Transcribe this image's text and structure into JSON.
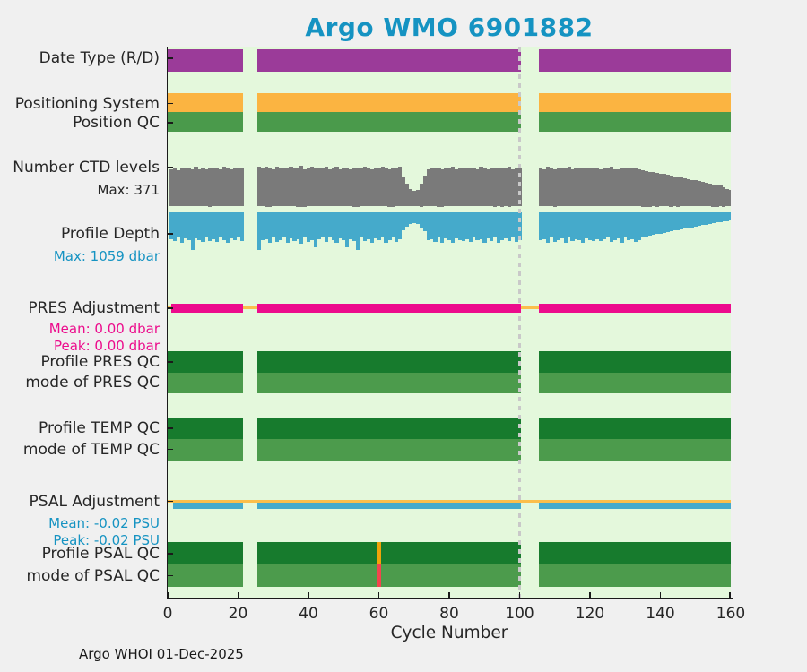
{
  "figure": {
    "title": "Argo WMO 6901882",
    "credit": "Argo WHOI 01-Dec-2025"
  },
  "x_axis": {
    "label": "Cycle Number",
    "ticks": [
      0,
      20,
      40,
      60,
      80,
      100,
      120,
      140,
      160
    ],
    "range": [
      0,
      160
    ]
  },
  "row_labels": [
    {
      "label": "Date Type (R/D)"
    },
    {
      "label": "Positioning System"
    },
    {
      "label": "Position QC"
    },
    {
      "label": "Number CTD levels",
      "subs": [
        {
          "text": "Max: 371",
          "color": "label_dark"
        }
      ]
    },
    {
      "label": "Profile Depth",
      "subs": [
        {
          "text": "Max: 1059 dbar",
          "color": "teal_text"
        }
      ]
    },
    {
      "label": "PRES Adjustment",
      "subs": [
        {
          "text": "Mean: 0.00 dbar",
          "color": "magenta_text"
        },
        {
          "text": "Peak: 0.00 dbar",
          "color": "magenta_text"
        }
      ]
    },
    {
      "label": "Profile PRES QC"
    },
    {
      "label": "mode of PRES QC"
    },
    {
      "label": "Profile TEMP QC"
    },
    {
      "label": "mode of TEMP QC"
    },
    {
      "label": "PSAL Adjustment",
      "subs": [
        {
          "text": "Mean: -0.02 PSU",
          "color": "teal_text"
        },
        {
          "text": "Peak: -0.02 PSU",
          "color": "teal_text"
        }
      ]
    },
    {
      "label": "Profile PSAL QC"
    },
    {
      "label": "mode of PSAL QC"
    }
  ],
  "colors": {
    "figure_bg": "#F0F0F0",
    "plot_bg": "#E4F8DC",
    "title_teal": "#1593C2",
    "label_dark": "#262626",
    "teal_text": "#1593C2",
    "magenta_text": "#EC0C8C",
    "purple": "#9B3B99",
    "orange_band": "#FBB441",
    "green_band": "#4A9A4B",
    "gray_bar": "#7A7A7A",
    "blue_bar": "#45AACB",
    "magenta": "#EC0C8C",
    "orange_line": "#FBBE4B",
    "dark_green": "#177B2D",
    "mid_green": "#4C9B4C",
    "marker_gray": "#C9C9C9",
    "axis": "#1A1A1A",
    "flag_orange": "#F0A30A",
    "flag_red": "#F2454D"
  },
  "chart_data": {
    "type": "multi-row status timeline with bar series (Argo float QC summary)",
    "x_unit": "cycle number",
    "x_range": [
      0,
      160
    ],
    "missing_cycle_ranges": [
      [
        22,
        25
      ],
      [
        101,
        105
      ]
    ],
    "segments_cycles": [
      [
        0.1,
        21.5
      ],
      [
        25.6,
        100.4
      ],
      [
        105.6,
        160
      ]
    ],
    "marker_line_cycle": 100,
    "band_rows": [
      "date_type",
      "positioning_system",
      "position_qc",
      "profile_pres_qc",
      "mode_pres_qc",
      "profile_temp_qc",
      "mode_temp_qc",
      "profile_psal_qc",
      "mode_psal_qc"
    ],
    "ctd_levels": {
      "max": 371,
      "values": [
        340,
        352,
        331,
        358,
        344,
        349,
        337,
        362,
        342,
        356,
        335,
        359,
        347,
        352,
        340,
        361,
        345,
        336,
        353,
        343,
        349,
        null,
        null,
        null,
        null,
        362,
        345,
        367,
        351,
        340,
        364,
        350,
        357,
        343,
        361,
        348,
        355,
        371,
        338,
        352,
        360,
        344,
        357,
        349,
        364,
        340,
        353,
        360,
        337,
        356,
        347,
        342,
        359,
        351,
        345,
        362,
        350,
        340,
        358,
        346,
        364,
        352,
        338,
        355,
        348,
        360,
        275,
        205,
        158,
        140,
        152,
        212,
        280,
        340,
        354,
        345,
        359,
        338,
        352,
        347,
        361,
        342,
        356,
        350,
        344,
        358,
        346,
        340,
        361,
        349,
        336,
        354,
        359,
        343,
        351,
        347,
        363,
        340,
        352,
        346,
        null,
        null,
        null,
        null,
        null,
        354,
        342,
        360,
        348,
        338,
        356,
        350,
        344,
        361,
        340,
        352,
        346,
        358,
        343,
        350,
        345,
        357,
        339,
        353,
        348,
        360,
        342,
        336,
        354,
        347,
        358,
        344,
        350,
        340,
        330,
        326,
        318,
        312,
        306,
        300,
        294,
        288,
        281,
        275,
        269,
        262,
        256,
        250,
        244,
        238,
        231,
        225,
        218,
        211,
        204,
        196,
        188,
        175,
        162,
        148
      ]
    },
    "profile_depth": {
      "max_dbar": 1059,
      "values": [
        760,
        818,
        702,
        876,
        748,
        796,
        1059,
        728,
        788,
        846,
        718,
        808,
        758,
        838,
        704,
        778,
        856,
        738,
        798,
        722,
        828,
        null,
        null,
        null,
        null,
        1059,
        796,
        762,
        876,
        722,
        838,
        778,
        704,
        856,
        742,
        818,
        762,
        886,
        712,
        848,
        778,
        1000,
        762,
        722,
        838,
        702,
        798,
        876,
        732,
        788,
        1000,
        752,
        818,
        1059,
        702,
        818,
        762,
        876,
        742,
        798,
        722,
        856,
        778,
        704,
        838,
        762,
        520,
        418,
        342,
        310,
        332,
        428,
        538,
        798,
        762,
        838,
        722,
        876,
        748,
        798,
        856,
        732,
        788,
        818,
        762,
        848,
        722,
        798,
        762,
        876,
        742,
        818,
        702,
        856,
        778,
        748,
        828,
        712,
        838,
        788,
        null,
        null,
        null,
        null,
        null,
        798,
        762,
        876,
        722,
        838,
        778,
        742,
        856,
        702,
        818,
        762,
        798,
        876,
        732,
        788,
        808,
        752,
        828,
        768,
        702,
        848,
        788,
        742,
        856,
        722,
        798,
        762,
        838,
        778,
        700,
        688,
        662,
        640,
        620,
        600,
        580,
        560,
        540,
        520,
        500,
        482,
        462,
        444,
        424,
        404,
        384,
        364,
        344,
        324,
        304,
        286,
        270,
        256,
        246,
        236
      ]
    },
    "pres_adjustment": {
      "mean_dbar": 0.0,
      "peak_dbar": 0.0,
      "unit": "dbar",
      "line_segments_cycles": [
        [
          1.0,
          21.5
        ],
        [
          25.6,
          100.4
        ],
        [
          105.6,
          160
        ]
      ]
    },
    "psal_adjustment": {
      "mean_psu": -0.02,
      "peak_psu": -0.02,
      "unit": "PSU",
      "line_segments_cycles": [
        [
          1.6,
          21.5
        ],
        [
          25.6,
          100.4
        ],
        [
          105.6,
          160
        ]
      ]
    },
    "qc_flags": [
      {
        "cycle": 60,
        "row": "profile_psal_qc",
        "color": "flag_orange"
      },
      {
        "cycle": 60,
        "row": "mode_psal_qc",
        "color": "flag_red"
      }
    ]
  }
}
